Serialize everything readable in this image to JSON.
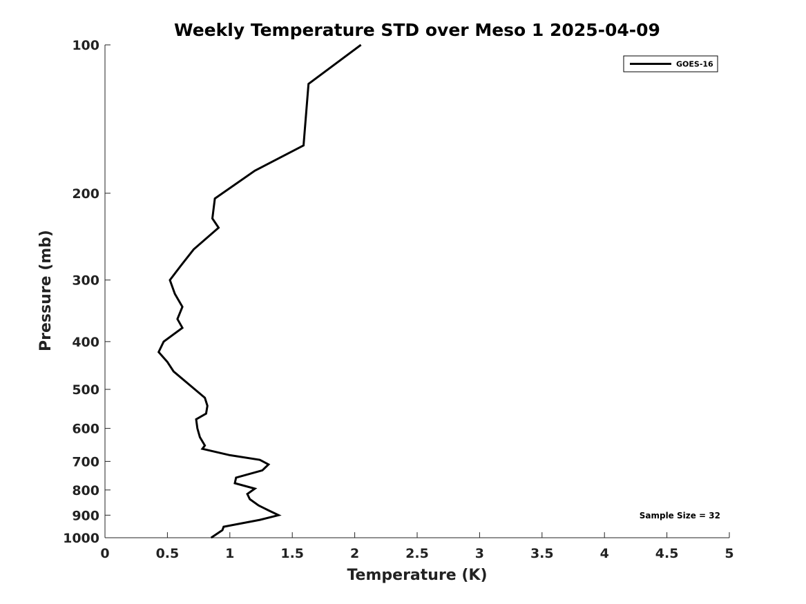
{
  "chart_data": {
    "type": "line",
    "title": "Weekly Temperature STD over Meso 1 2025-04-09",
    "xlabel": "Temperature (K)",
    "ylabel": "Pressure (mb)",
    "xlim": [
      0,
      5
    ],
    "ylim": [
      1000,
      100
    ],
    "yscale": "log",
    "xticks": [
      0,
      0.5,
      1,
      1.5,
      2,
      2.5,
      3,
      3.5,
      4,
      4.5,
      5
    ],
    "xtick_labels": [
      "0",
      "0.5",
      "1",
      "1.5",
      "2",
      "2.5",
      "3",
      "3.5",
      "4",
      "4.5",
      "5"
    ],
    "yticks": [
      100,
      200,
      300,
      400,
      500,
      600,
      700,
      800,
      900,
      1000
    ],
    "ytick_labels": [
      "100",
      "200",
      "300",
      "400",
      "500",
      "600",
      "700",
      "800",
      "900",
      "1000"
    ],
    "grid": false,
    "legend_position": "top-right",
    "series": [
      {
        "name": "GOES-16",
        "color": "#000000",
        "x": [
          2.05,
          1.63,
          1.59,
          1.2,
          0.88,
          0.86,
          0.91,
          0.71,
          0.61,
          0.52,
          0.56,
          0.62,
          0.58,
          0.62,
          0.47,
          0.43,
          0.5,
          0.55,
          0.72,
          0.8,
          0.82,
          0.81,
          0.73,
          0.74,
          0.76,
          0.8,
          0.78,
          1.0,
          1.24,
          1.31,
          1.26,
          1.05,
          1.04,
          1.2,
          1.14,
          1.16,
          1.23,
          1.31,
          1.39,
          1.24,
          0.95,
          0.94,
          0.85
        ],
        "y": [
          100,
          120,
          160,
          180,
          205,
          225,
          235,
          260,
          280,
          300,
          320,
          340,
          360,
          375,
          400,
          420,
          440,
          460,
          500,
          520,
          540,
          560,
          575,
          600,
          625,
          650,
          660,
          680,
          695,
          710,
          730,
          755,
          775,
          795,
          815,
          835,
          860,
          880,
          900,
          920,
          950,
          965,
          1000
        ]
      }
    ],
    "annotations": [
      {
        "text": "Sample Size = 32",
        "position": "bottom-right"
      }
    ]
  }
}
